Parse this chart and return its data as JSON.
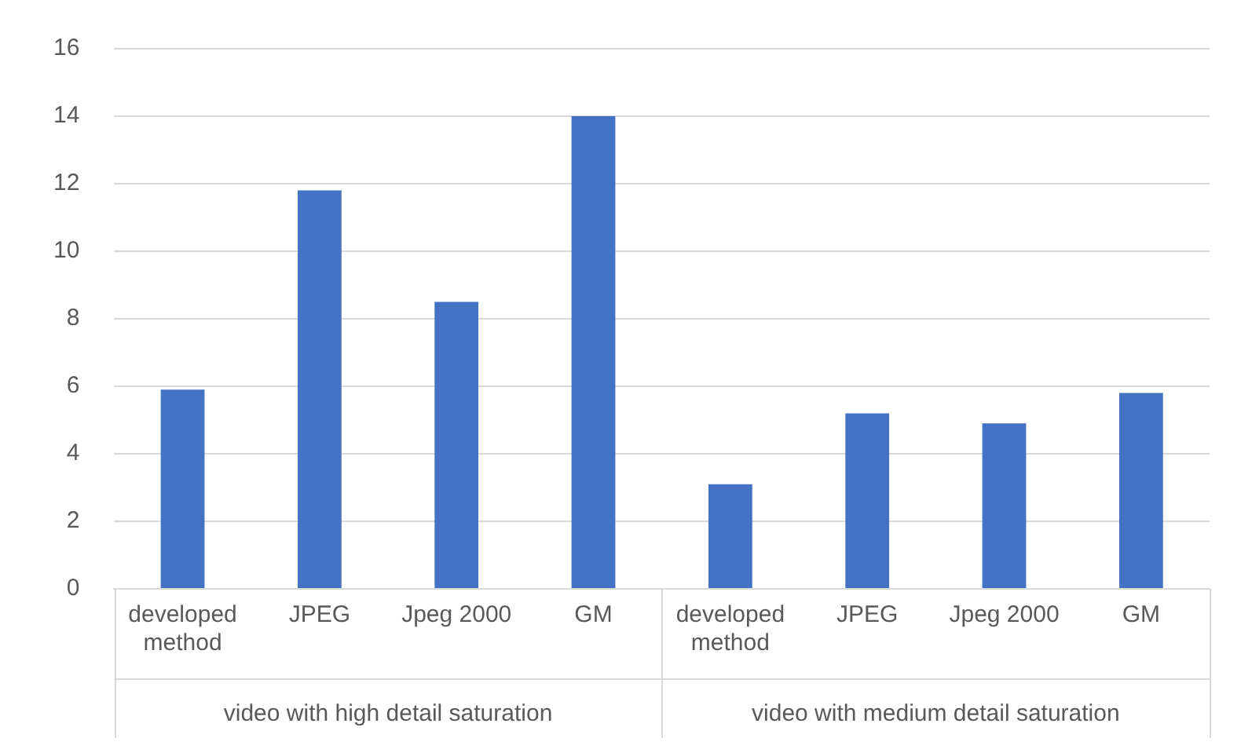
{
  "chart_data": {
    "type": "bar",
    "categories": [
      "developed method",
      "JPEG",
      "Jpeg 2000",
      "GM",
      "developed method",
      "JPEG",
      "Jpeg 2000",
      "GM"
    ],
    "values": [
      5.9,
      11.8,
      8.5,
      14.0,
      3.1,
      5.2,
      4.9,
      5.8
    ],
    "color": "#4472c4",
    "ylim": [
      0,
      16
    ],
    "yticks": [
      0,
      2,
      4,
      6,
      8,
      10,
      12,
      14,
      16
    ],
    "grid": "y",
    "annotations": [
      "video with high detail saturation",
      "video with medium detail saturation"
    ]
  }
}
